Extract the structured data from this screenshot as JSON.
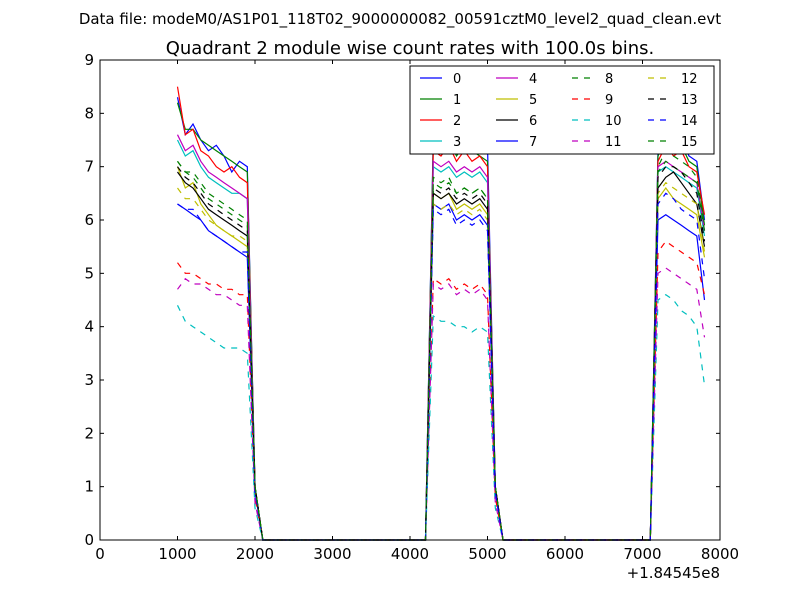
{
  "figure": {
    "suptitle": "Data file: modeM0/AS1P01_118T02_9000000082_00591cztM0_level2_quad_clean.evt",
    "title": "Quadrant 2 module wise count rates with 100.0s bins."
  },
  "chart_data": {
    "type": "line",
    "title": "Quadrant 2 module wise count rates with 100.0s bins.",
    "xlabel": "",
    "ylabel": "",
    "xlim": [
      0,
      8000
    ],
    "ylim": [
      0,
      9
    ],
    "x_offset_label": "+1.84545e8",
    "xticks": [
      0,
      1000,
      2000,
      3000,
      4000,
      5000,
      6000,
      7000,
      8000
    ],
    "yticks": [
      0,
      1,
      2,
      3,
      4,
      5,
      6,
      7,
      8,
      9
    ],
    "grid": false,
    "legend_position": "top-right",
    "legend_columns": 4,
    "x": [
      1000,
      1100,
      1200,
      1300,
      1400,
      1500,
      1600,
      1700,
      1800,
      1900,
      2000,
      2100,
      4200,
      4300,
      4400,
      4500,
      4600,
      4700,
      4800,
      4900,
      5000,
      5100,
      5200,
      7100,
      7200,
      7300,
      7400,
      7500,
      7600,
      7700,
      7800
    ],
    "series": [
      {
        "name": "0",
        "color": "#0000ff",
        "dash": "solid",
        "values": [
          8.3,
          7.6,
          7.8,
          7.5,
          7.3,
          7.4,
          7.2,
          6.9,
          7.1,
          7.0,
          1.0,
          0,
          0,
          7.6,
          7.5,
          7.6,
          7.3,
          7.4,
          7.3,
          7.5,
          7.4,
          1.0,
          0,
          0,
          7.3,
          7.6,
          7.4,
          7.5,
          7.2,
          7.1,
          6.0
        ]
      },
      {
        "name": "1",
        "color": "#008000",
        "dash": "solid",
        "values": [
          8.2,
          7.7,
          7.7,
          7.5,
          7.4,
          7.3,
          7.2,
          7.1,
          7.0,
          6.9,
          1.0,
          0,
          0,
          7.5,
          7.3,
          7.5,
          7.2,
          7.4,
          7.3,
          7.2,
          7.1,
          1.0,
          0,
          0,
          7.2,
          7.5,
          7.3,
          7.4,
          7.1,
          7.0,
          5.9
        ]
      },
      {
        "name": "2",
        "color": "#ff0000",
        "dash": "solid",
        "values": [
          8.5,
          7.6,
          7.7,
          7.3,
          7.2,
          7.0,
          6.9,
          7.0,
          6.8,
          6.7,
          1.0,
          0,
          0,
          7.3,
          7.2,
          7.4,
          7.1,
          7.3,
          7.1,
          7.2,
          7.0,
          1.0,
          0,
          0,
          7.1,
          7.4,
          7.2,
          7.3,
          7.0,
          6.9,
          6.1
        ]
      },
      {
        "name": "3",
        "color": "#00bfbf",
        "dash": "solid",
        "values": [
          7.5,
          7.2,
          7.3,
          7.0,
          6.8,
          6.7,
          6.6,
          6.5,
          6.5,
          6.4,
          1.0,
          0,
          0,
          7.0,
          6.9,
          7.0,
          6.8,
          6.9,
          6.8,
          6.9,
          6.7,
          1.0,
          0,
          0,
          6.9,
          7.0,
          6.9,
          6.8,
          6.7,
          6.6,
          5.7
        ]
      },
      {
        "name": "4",
        "color": "#bf00bf",
        "dash": "solid",
        "values": [
          7.6,
          7.3,
          7.4,
          7.1,
          6.9,
          6.8,
          6.7,
          6.6,
          6.5,
          6.4,
          1.0,
          0,
          0,
          7.1,
          7.0,
          7.1,
          6.9,
          7.0,
          6.9,
          7.0,
          6.8,
          1.0,
          0,
          0,
          7.0,
          7.1,
          7.0,
          6.9,
          6.8,
          6.7,
          5.8
        ]
      },
      {
        "name": "5",
        "color": "#bfbf00",
        "dash": "solid",
        "values": [
          7.0,
          6.6,
          6.7,
          6.3,
          6.1,
          5.9,
          5.8,
          5.7,
          5.6,
          5.5,
          1.0,
          0,
          0,
          6.5,
          6.4,
          6.5,
          6.2,
          6.3,
          6.2,
          6.3,
          6.1,
          1.0,
          0,
          0,
          6.4,
          6.6,
          6.4,
          6.3,
          6.2,
          6.1,
          5.3
        ]
      },
      {
        "name": "6",
        "color": "#000000",
        "dash": "solid",
        "values": [
          6.9,
          6.7,
          6.6,
          6.4,
          6.2,
          6.1,
          6.0,
          5.9,
          5.8,
          5.7,
          1.0,
          0,
          0,
          6.5,
          6.4,
          6.5,
          6.3,
          6.4,
          6.3,
          6.4,
          6.2,
          1.0,
          0,
          0,
          6.6,
          6.8,
          6.9,
          6.7,
          6.5,
          6.3,
          5.5
        ]
      },
      {
        "name": "7",
        "color": "#0000ff",
        "dash": "solid",
        "values": [
          6.3,
          6.2,
          6.1,
          6.0,
          5.8,
          5.7,
          5.6,
          5.5,
          5.4,
          5.3,
          0.9,
          0,
          0,
          6.3,
          6.2,
          6.3,
          6.0,
          6.1,
          6.0,
          6.1,
          5.9,
          0.9,
          0,
          0,
          6.0,
          6.1,
          6.0,
          5.9,
          5.8,
          5.7,
          4.5
        ]
      },
      {
        "name": "8",
        "color": "#008000",
        "dash": "dash",
        "values": [
          7.1,
          6.9,
          6.8,
          6.6,
          6.4,
          6.3,
          6.2,
          6.1,
          6.0,
          5.9,
          1.0,
          0,
          0,
          6.7,
          6.6,
          6.7,
          6.5,
          6.6,
          6.5,
          6.6,
          6.4,
          1.0,
          0,
          0,
          6.9,
          7.1,
          7.0,
          6.9,
          6.8,
          6.7,
          5.8
        ]
      },
      {
        "name": "9",
        "color": "#ff0000",
        "dash": "dash",
        "values": [
          5.2,
          5.0,
          5.0,
          4.9,
          4.8,
          4.8,
          4.7,
          4.7,
          4.6,
          4.6,
          0.8,
          0,
          0,
          4.9,
          4.8,
          4.9,
          4.7,
          4.8,
          4.7,
          4.8,
          4.6,
          0.8,
          0,
          0,
          5.4,
          5.6,
          5.5,
          5.4,
          5.3,
          5.2,
          4.6
        ]
      },
      {
        "name": "10",
        "color": "#00bfbf",
        "dash": "dash",
        "values": [
          4.4,
          4.1,
          4.0,
          3.9,
          3.8,
          3.7,
          3.6,
          3.6,
          3.6,
          3.5,
          0.6,
          0,
          0,
          4.2,
          4.1,
          4.1,
          4.0,
          4.0,
          3.9,
          4.0,
          3.9,
          0.6,
          0,
          0,
          4.5,
          4.6,
          4.5,
          4.3,
          4.2,
          4.0,
          2.9
        ]
      },
      {
        "name": "11",
        "color": "#bf00bf",
        "dash": "dash",
        "values": [
          4.7,
          4.9,
          4.8,
          4.8,
          4.7,
          4.6,
          4.6,
          4.5,
          4.4,
          4.4,
          0.7,
          0,
          0,
          4.8,
          4.7,
          4.8,
          4.6,
          4.7,
          4.6,
          4.7,
          4.5,
          0.7,
          0,
          0,
          5.0,
          5.1,
          5.0,
          4.9,
          4.8,
          4.7,
          3.8
        ]
      },
      {
        "name": "12",
        "color": "#bfbf00",
        "dash": "dash",
        "values": [
          6.6,
          6.4,
          6.4,
          6.2,
          6.0,
          5.9,
          5.8,
          5.7,
          5.7,
          5.6,
          1.0,
          0,
          0,
          6.3,
          6.2,
          6.3,
          6.1,
          6.2,
          6.1,
          6.2,
          6.0,
          1.0,
          0,
          0,
          6.5,
          6.7,
          6.6,
          6.5,
          6.4,
          6.3,
          5.4
        ]
      },
      {
        "name": "13",
        "color": "#000000",
        "dash": "dash",
        "values": [
          7.0,
          6.8,
          6.7,
          6.5,
          6.3,
          6.2,
          6.1,
          6.0,
          5.9,
          5.8,
          1.0,
          0,
          0,
          6.6,
          6.5,
          6.6,
          6.4,
          6.5,
          6.4,
          6.5,
          6.3,
          1.0,
          0,
          0,
          6.8,
          7.0,
          7.0,
          6.9,
          6.7,
          6.5,
          5.6
        ]
      },
      {
        "name": "14",
        "color": "#0000ff",
        "dash": "dash",
        "values": [
          6.3,
          6.2,
          6.2,
          6.0,
          5.8,
          5.7,
          5.6,
          5.5,
          5.4,
          5.4,
          0.9,
          0,
          0,
          6.2,
          6.1,
          6.2,
          5.9,
          6.0,
          5.9,
          6.0,
          5.8,
          0.9,
          0,
          0,
          6.3,
          6.5,
          6.4,
          6.2,
          6.1,
          6.0,
          4.9
        ]
      },
      {
        "name": "15",
        "color": "#008000",
        "dash": "dash",
        "values": [
          7.1,
          6.9,
          6.9,
          6.7,
          6.5,
          6.4,
          6.3,
          6.2,
          6.1,
          6.0,
          1.0,
          0,
          0,
          6.8,
          6.7,
          6.8,
          6.5,
          6.6,
          6.5,
          6.6,
          6.4,
          1.0,
          0,
          0,
          7.0,
          7.3,
          7.2,
          7.1,
          7.0,
          6.8,
          5.9
        ]
      }
    ]
  }
}
